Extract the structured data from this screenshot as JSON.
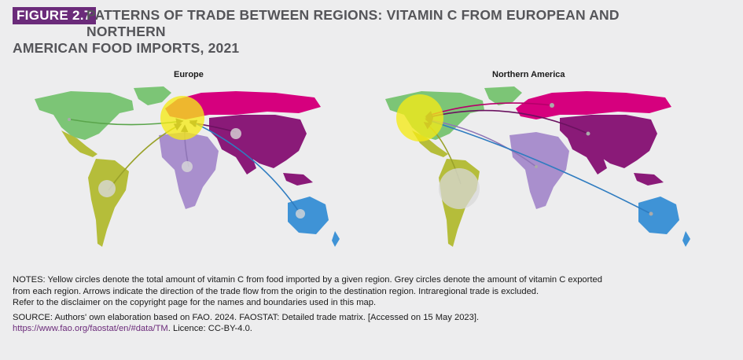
{
  "figure": {
    "tag": "FIGURE 2.7",
    "title_line1": "PATTERNS OF TRADE BETWEEN REGIONS: VITAMIN C FROM EUROPEAN AND NORTHERN",
    "title_line2": "AMERICAN FOOD IMPORTS, 2021"
  },
  "maps": [
    {
      "title": "Europe"
    },
    {
      "title": "Northern America"
    }
  ],
  "colors": {
    "northern_america": "#7cc576",
    "latin_america": "#b5bd3a",
    "europe": "#d6007e",
    "africa": "#a98fcd",
    "asia": "#8a1a78",
    "oceania": "#3f93d6",
    "import_circle": "#f5ea17",
    "export_circle": "#d8d8d8"
  },
  "notes": {
    "line1": "NOTES: Yellow circles denote the total amount of vitamin C from food imported by a given region. Grey circles denote the amount of vitamin C exported",
    "line2": "from each region. Arrows indicate the direction of the trade flow from the origin to the destination region. Intraregional trade is excluded.",
    "line3": "Refer to the disclaimer on the copyright page for the names and boundaries used in this map."
  },
  "source": {
    "line1": "SOURCE: Authors' own elaboration based on FAO. 2024. FAOSTAT: Detailed trade matrix. [Accessed on 15 May 2023].",
    "link": "https://www.fao.org/faostat/en/#data/TM",
    "licence": ". Licence: CC-BY-4.0."
  }
}
